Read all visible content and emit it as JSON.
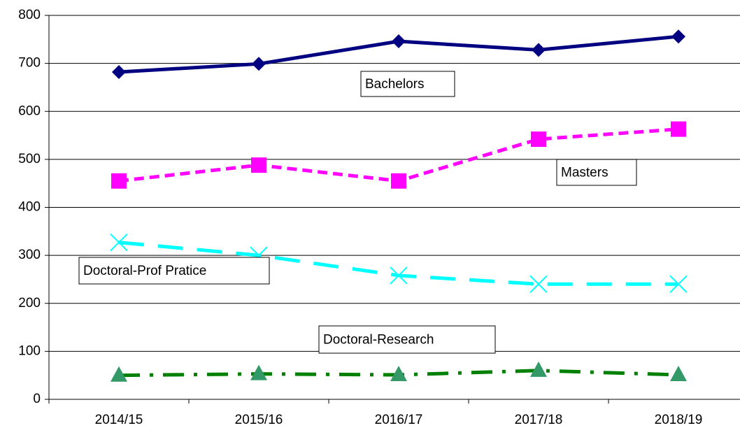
{
  "chart_data": {
    "type": "line",
    "categories": [
      "2014/15",
      "2015/16",
      "2016/17",
      "2017/18",
      "2018/19"
    ],
    "series": [
      {
        "name": "Bachelors",
        "color": "#000080",
        "marker": "diamond",
        "dash": "solid",
        "values": [
          682,
          699,
          746,
          728,
          756
        ]
      },
      {
        "name": "Masters",
        "color": "#ff00ff",
        "marker": "square",
        "dash": "dash",
        "values": [
          455,
          488,
          455,
          542,
          563
        ]
      },
      {
        "name": "Doctoral-Prof Pratice",
        "color": "#00ffff",
        "marker": "x",
        "dash": "longdash",
        "values": [
          327,
          300,
          258,
          240,
          240
        ]
      },
      {
        "name": "Doctoral-Research",
        "color": "#008000",
        "marker": "triangle",
        "dash": "dashdot",
        "values": [
          50,
          53,
          51,
          60,
          51
        ]
      }
    ],
    "ylim": [
      0,
      800
    ],
    "yticks": [
      0,
      100,
      200,
      300,
      400,
      500,
      600,
      700,
      800
    ],
    "grid": true
  }
}
